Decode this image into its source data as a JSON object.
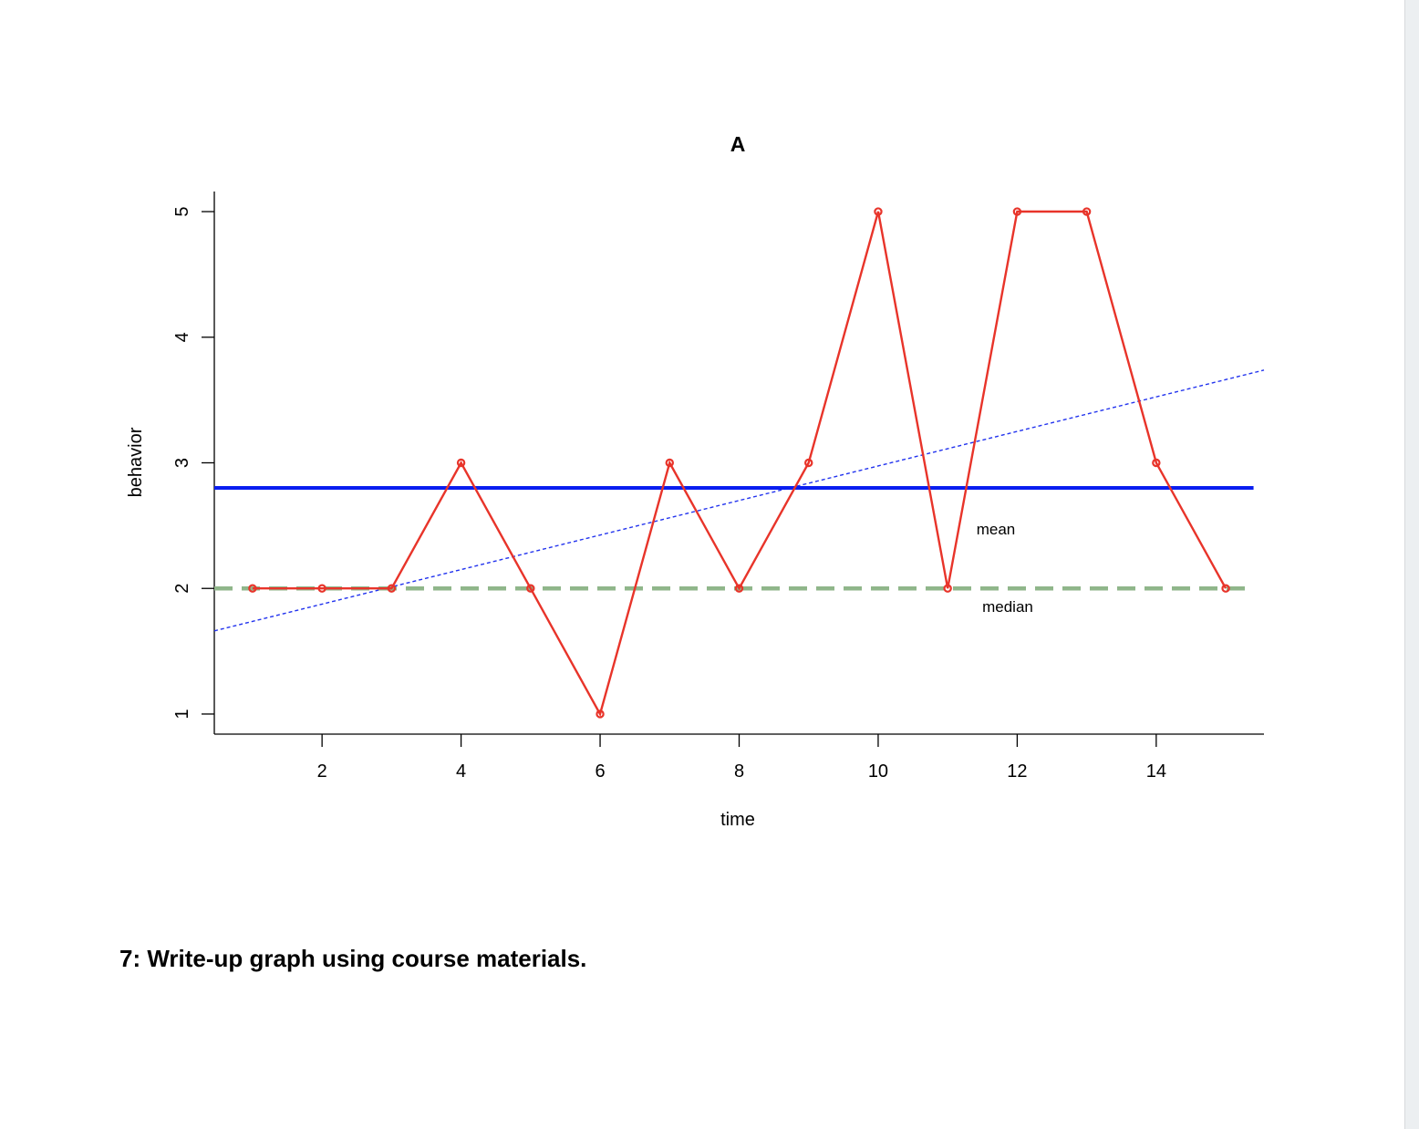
{
  "chart_data": {
    "type": "line",
    "title": "A",
    "xlabel": "time",
    "ylabel": "behavior",
    "x": [
      1,
      2,
      3,
      4,
      5,
      6,
      7,
      8,
      9,
      10,
      11,
      12,
      13,
      14,
      15
    ],
    "series": [
      {
        "values": [
          2,
          2,
          2,
          3,
          2,
          1,
          3,
          2,
          3,
          5,
          2,
          5,
          5,
          3,
          2
        ],
        "color": "#e8342a"
      }
    ],
    "mean": {
      "value": 2.8,
      "label": "mean",
      "color": "#0a1ef0"
    },
    "median": {
      "value": 2,
      "label": "median",
      "color": "#8fb68a"
    },
    "trend": {
      "intercept": 1.6,
      "slope": 0.1375,
      "color": "#2233ee"
    },
    "xlim": [
      0.45,
      15.55
    ],
    "ylim": [
      0.84,
      5.16
    ],
    "xticks": [
      2,
      4,
      6,
      8,
      10,
      12,
      14
    ],
    "yticks": [
      1,
      2,
      3,
      4,
      5
    ],
    "grid": false,
    "legend": "none"
  },
  "question": {
    "text": "7: Write-up graph using course materials."
  },
  "colors": {
    "scrollbar": "#eceff1"
  }
}
